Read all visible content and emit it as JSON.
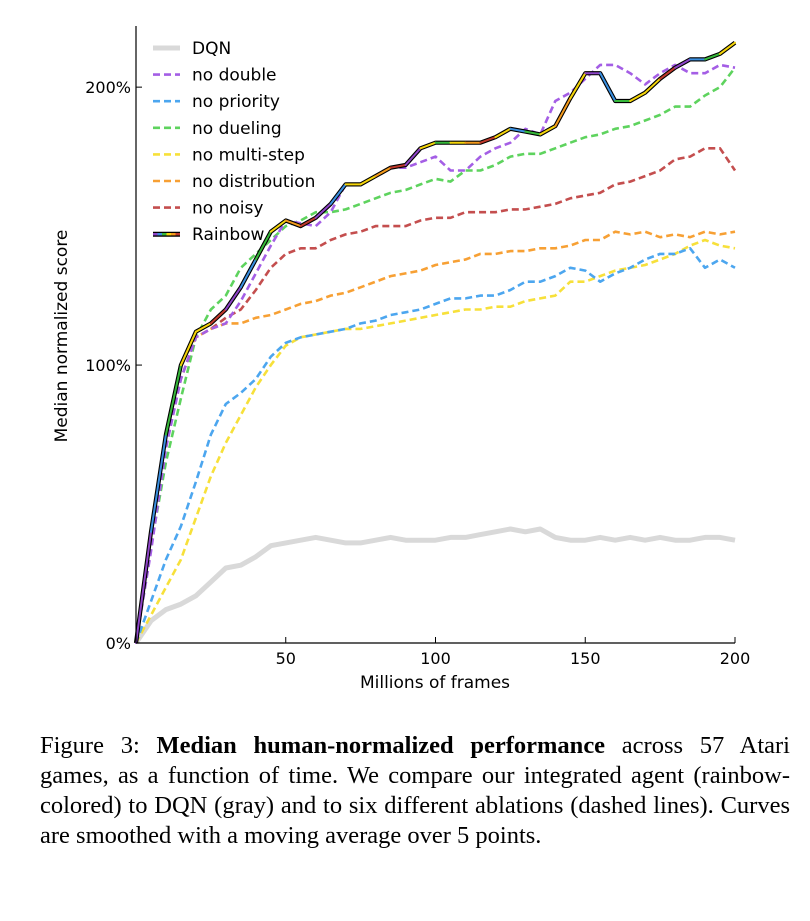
{
  "chart_data": {
    "type": "line",
    "title": "",
    "xlabel": "Millions of frames",
    "ylabel": "Median normalized score",
    "xlim": [
      0,
      200
    ],
    "ylim": [
      0,
      222
    ],
    "xticks": [
      50,
      100,
      150,
      200
    ],
    "xtick_labels": [
      "50",
      "100",
      "150",
      "200"
    ],
    "yticks": [
      0,
      100,
      200
    ],
    "ytick_labels": [
      "0%",
      "100%",
      "200%"
    ],
    "legend_position": "top-left",
    "x": [
      0,
      5,
      10,
      15,
      20,
      25,
      30,
      35,
      40,
      45,
      50,
      55,
      60,
      65,
      70,
      75,
      80,
      85,
      90,
      95,
      100,
      105,
      110,
      115,
      120,
      125,
      130,
      135,
      140,
      145,
      150,
      155,
      160,
      165,
      170,
      175,
      180,
      185,
      190,
      195,
      200
    ],
    "series": [
      {
        "name": "DQN",
        "color": "#d9d9d9",
        "style": "solid",
        "values": [
          0,
          8,
          12,
          14,
          17,
          22,
          27,
          28,
          31,
          35,
          36,
          37,
          38,
          37,
          36,
          36,
          37,
          38,
          37,
          37,
          37,
          38,
          38,
          39,
          40,
          41,
          40,
          41,
          38,
          37,
          37,
          38,
          37,
          38,
          37,
          38,
          37,
          37,
          38,
          38,
          37
        ]
      },
      {
        "name": "no double",
        "color": "#a45ee5",
        "style": "dashed",
        "values": [
          0,
          33,
          70,
          95,
          110,
          113,
          115,
          123,
          133,
          143,
          152,
          151,
          150,
          155,
          165,
          165,
          168,
          171,
          171,
          173,
          175,
          170,
          170,
          175,
          178,
          180,
          185,
          183,
          195,
          198,
          203,
          208,
          208,
          205,
          201,
          205,
          208,
          205,
          205,
          208,
          207
        ]
      },
      {
        "name": "no priority",
        "color": "#4ca6ef",
        "style": "dashed",
        "values": [
          0,
          15,
          30,
          42,
          58,
          75,
          86,
          90,
          95,
          103,
          108,
          110,
          111,
          112,
          113,
          115,
          116,
          118,
          119,
          120,
          122,
          124,
          124,
          125,
          125,
          127,
          130,
          130,
          132,
          135,
          134,
          130,
          133,
          135,
          138,
          140,
          140,
          142,
          135,
          138,
          135
        ]
      },
      {
        "name": "no dueling",
        "color": "#5ed35e",
        "style": "dashed",
        "values": [
          0,
          35,
          65,
          88,
          110,
          120,
          125,
          135,
          140,
          145,
          150,
          152,
          155,
          155,
          156,
          158,
          160,
          162,
          163,
          165,
          167,
          166,
          170,
          170,
          172,
          175,
          176,
          176,
          178,
          180,
          182,
          183,
          185,
          186,
          188,
          190,
          193,
          193,
          197,
          200,
          207
        ]
      },
      {
        "name": "no multi-step",
        "color": "#f7e03a",
        "style": "dashed",
        "values": [
          0,
          10,
          20,
          30,
          45,
          60,
          72,
          82,
          92,
          100,
          107,
          110,
          111,
          112,
          113,
          113,
          114,
          115,
          116,
          117,
          118,
          119,
          120,
          120,
          121,
          121,
          123,
          124,
          125,
          130,
          130,
          132,
          134,
          135,
          136,
          138,
          140,
          143,
          145,
          143,
          142
        ]
      },
      {
        "name": "no distribution",
        "color": "#f7a034",
        "style": "dashed",
        "values": [
          0,
          38,
          75,
          100,
          110,
          113,
          115,
          115,
          117,
          118,
          120,
          122,
          123,
          125,
          126,
          128,
          130,
          132,
          133,
          134,
          136,
          137,
          138,
          140,
          140,
          141,
          141,
          142,
          142,
          143,
          145,
          145,
          148,
          147,
          148,
          146,
          147,
          146,
          148,
          147,
          148
        ]
      },
      {
        "name": "no noisy",
        "color": "#c44e4e",
        "style": "dashed",
        "values": [
          0,
          38,
          72,
          95,
          110,
          113,
          117,
          120,
          127,
          135,
          140,
          142,
          142,
          145,
          147,
          148,
          150,
          150,
          150,
          152,
          153,
          153,
          155,
          155,
          155,
          156,
          156,
          157,
          158,
          160,
          161,
          162,
          165,
          166,
          168,
          170,
          174,
          175,
          178,
          178,
          170
        ]
      },
      {
        "name": "Rainbow",
        "color": "rainbow",
        "style": "solid",
        "values": [
          0,
          40,
          75,
          100,
          112,
          115,
          120,
          128,
          138,
          148,
          152,
          150,
          153,
          158,
          165,
          165,
          168,
          171,
          172,
          178,
          180,
          180,
          180,
          180,
          182,
          185,
          184,
          183,
          186,
          196,
          205,
          205,
          195,
          195,
          198,
          203,
          207,
          210,
          210,
          212,
          216
        ]
      }
    ]
  },
  "caption": {
    "prefix": "Figure 3: ",
    "bold": "Median human-normalized performance",
    "rest": " across 57 Atari games, as a function of time. We compare our integrated agent (rainbow-colored) to DQN (gray) and to six different ablations (dashed lines). Curves are smoothed with a moving average over 5 points."
  }
}
